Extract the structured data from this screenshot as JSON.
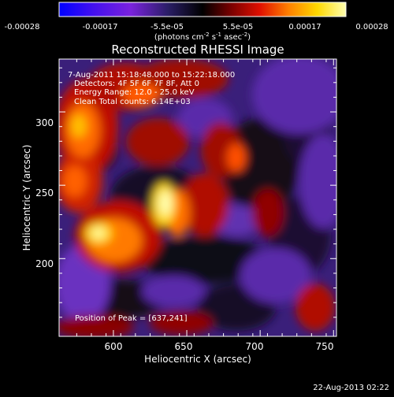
{
  "chart_data": {
    "type": "heatmap",
    "title": "Reconstructed RHESSI Image",
    "xlabel": "Heliocentric X (arcsec)",
    "ylabel": "Heliocentric Y (arcsec)",
    "xlim": [
      563,
      752
    ],
    "ylim": [
      147,
      336
    ],
    "x_ticks": [
      "600",
      "650",
      "700",
      "750"
    ],
    "y_ticks": [
      "200",
      "250",
      "300"
    ],
    "colorbar": {
      "ticks": [
        "-0.00028",
        "-0.00017",
        "-5.5e-05",
        "5.5e-05",
        "0.00017",
        "0.00028"
      ],
      "range": [
        -0.00028,
        0.00028
      ],
      "unit_parts": [
        "(photons cm",
        "-2",
        " s",
        "-1",
        " asec",
        "-2",
        ")"
      ]
    },
    "colors": [
      "#0000ff",
      "#7a22dd",
      "#2a1e66",
      "#000000",
      "#7a0000",
      "#e01000",
      "#ff8000",
      "#ffd800",
      "#ffffb0"
    ],
    "info": {
      "line1": "7-Aug-2011 15:18:48.000 to 15:22:18.000",
      "line2": "Detectors: 4F 5F 6F 7F 8F, Att 0",
      "line3": "Energy Range: 12.0 - 25.0 keV",
      "line4": "Clean     Total counts: 6.14E+03"
    },
    "peak_label": "Position of Peak = [637,241]",
    "peak": [
      637,
      241
    ]
  },
  "timestamp": "22-Aug-2013 02:22"
}
